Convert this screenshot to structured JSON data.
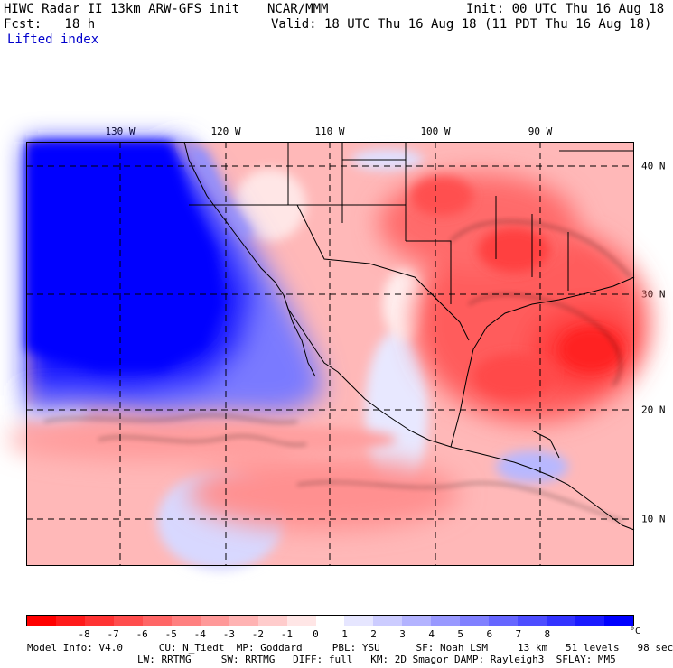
{
  "header": {
    "title": "HIWC Radar II 13km ARW-GFS init",
    "org": "NCAR/MMM",
    "init": "Init: 00 UTC Thu 16 Aug 18",
    "fcst": "Fcst:   18 h",
    "valid": "Valid: 18 UTC Thu 16 Aug 18 (11 PDT Thu 16 Aug 18)",
    "field": "Lifted index"
  },
  "map": {
    "lon_labels": [
      "130 W",
      "120 W",
      "110 W",
      "100 W",
      "90 W"
    ],
    "lat_labels": [
      "40 N",
      "30 N",
      "20 N",
      "10 N"
    ]
  },
  "colorbar": {
    "labels": [
      "-8",
      "-7",
      "-6",
      "-5",
      "-4",
      "-3",
      "-2",
      "-1",
      "0",
      "1",
      "2",
      "3",
      "4",
      "5",
      "6",
      "7",
      "8"
    ],
    "unit": "°C",
    "colors": [
      "#ff0000",
      "#ff1a1a",
      "#ff3333",
      "#ff4d4d",
      "#ff6666",
      "#ff8080",
      "#ff9999",
      "#ffb3b3",
      "#ffcccc",
      "#ffe6e6",
      "#ffffff",
      "#e6e6ff",
      "#ccccff",
      "#b3b3ff",
      "#9999ff",
      "#8080ff",
      "#6666ff",
      "#4d4dff",
      "#3333ff",
      "#1a1aff",
      "#0000ff"
    ]
  },
  "footer": {
    "line1": "Model Info: V4.0      CU: N_Tiedt  MP: Goddard     PBL: YSU      SF: Noah LSM     13 km   51 levels   98 sec",
    "line2": "LW: RRTMG     SW: RRTMG   DIFF: full   KM: 2D Smagor DAMP: Rayleigh3  SFLAY: MM5"
  }
}
